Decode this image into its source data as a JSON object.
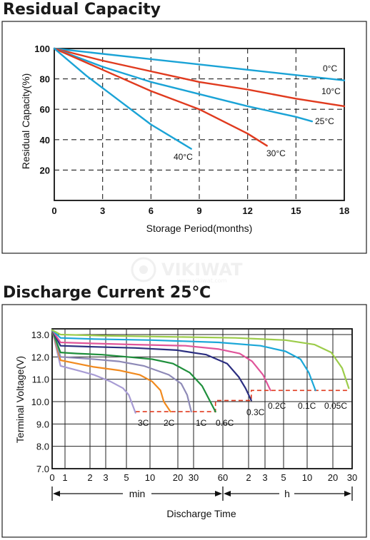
{
  "chart_data": [
    {
      "type": "line",
      "title": "Residual Capacity",
      "xlabel": "Storage Period(months)",
      "ylabel": "Residual Capacity(%)",
      "xlim": [
        0,
        18
      ],
      "ylim": [
        0,
        100
      ],
      "xticks": [
        0,
        3,
        6,
        9,
        12,
        15,
        18
      ],
      "yticks": [
        20,
        40,
        60,
        80,
        100
      ],
      "grid": true,
      "series": [
        {
          "name": "0°C",
          "color": "#1aa3d6",
          "x": [
            0,
            6,
            12,
            18
          ],
          "y": [
            100,
            93,
            86,
            79
          ]
        },
        {
          "name": "10°C",
          "color": "#e03a1e",
          "x": [
            0,
            3,
            6,
            9,
            12,
            15,
            18
          ],
          "y": [
            100,
            92,
            85,
            78,
            73,
            67,
            62
          ]
        },
        {
          "name": "25°C",
          "color": "#1aa3d6",
          "x": [
            0,
            3,
            6,
            9,
            12,
            15,
            16
          ],
          "y": [
            100,
            88,
            78,
            70,
            62,
            55,
            52
          ]
        },
        {
          "name": "30°C",
          "color": "#e03a1e",
          "x": [
            0,
            3,
            6,
            9,
            12,
            13.2
          ],
          "y": [
            100,
            86,
            72,
            60,
            44,
            36
          ]
        },
        {
          "name": "40°C",
          "color": "#1aa3d6",
          "x": [
            0,
            2,
            4,
            6,
            8.5
          ],
          "y": [
            100,
            82,
            66,
            50,
            34
          ]
        }
      ]
    },
    {
      "type": "line",
      "title": "Discharge Current 25℃",
      "xlabel": "Discharge Time",
      "ylabel": "Terminal Voltage(V)",
      "ylim": [
        7.0,
        13.0
      ],
      "yticks": [
        7.0,
        8.0,
        9.0,
        10.0,
        11.0,
        12.0,
        13.0
      ],
      "xtick_labels": [
        "0",
        "1",
        "2",
        "3",
        "5",
        "10",
        "20",
        "30",
        "60",
        "2",
        "3",
        "5",
        "10",
        "20",
        "30"
      ],
      "range_labels": {
        "min": "min",
        "h": "h"
      },
      "grid": true,
      "series": [
        {
          "name": "3C",
          "color": "#a79bd4",
          "x": [
            0,
            1,
            3,
            5,
            7,
            8.5,
            9.2,
            9.6,
            10
          ],
          "y": [
            13.2,
            11.6,
            11.4,
            11.2,
            10.9,
            10.6,
            10.3,
            9.9,
            9.5
          ]
        },
        {
          "name": "2C",
          "color": "#f18a1e",
          "x": [
            0,
            1,
            3,
            5,
            8,
            10.5,
            12,
            13,
            13.4,
            14.2
          ],
          "y": [
            13.2,
            11.85,
            11.7,
            11.55,
            11.4,
            11.2,
            10.9,
            10.5,
            10.0,
            9.55
          ]
        },
        {
          "name": "1C",
          "color": "#8e8ab7",
          "x": [
            0,
            1,
            3,
            5,
            8,
            11,
            14,
            15.5,
            16.2,
            16.7
          ],
          "y": [
            13.2,
            12.0,
            11.95,
            11.9,
            11.8,
            11.6,
            11.2,
            10.8,
            10.3,
            9.55
          ]
        },
        {
          "name": "0.6C",
          "color": "#1f8f3c",
          "x": [
            0,
            1,
            3,
            6,
            9,
            12,
            14.5,
            16.5,
            18,
            19.6
          ],
          "y": [
            13.2,
            12.2,
            12.15,
            12.1,
            12.0,
            11.9,
            11.7,
            11.3,
            10.7,
            9.55
          ]
        },
        {
          "name": "0.3C",
          "color": "#2b2e80",
          "x": [
            0,
            1,
            5,
            10,
            15,
            18.5,
            21,
            22.4,
            23.2,
            23.9
          ],
          "y": [
            13.2,
            12.5,
            12.45,
            12.4,
            12.3,
            12.1,
            11.7,
            11.1,
            10.6,
            10.05
          ]
        },
        {
          "name": "0.2C",
          "color": "#e0559a",
          "x": [
            0,
            1,
            5,
            10,
            16,
            20,
            22.5,
            24,
            25.3,
            26.2
          ],
          "y": [
            13.2,
            12.65,
            12.6,
            12.55,
            12.5,
            12.35,
            12.15,
            11.8,
            11.2,
            10.5
          ]
        },
        {
          "name": "0.1C",
          "color": "#1ba7d8",
          "x": [
            0,
            1,
            5,
            12,
            20,
            25,
            28,
            29.8,
            30.8,
            31.6
          ],
          "y": [
            13.2,
            12.85,
            12.8,
            12.75,
            12.65,
            12.5,
            12.25,
            11.9,
            11.3,
            10.5
          ]
        },
        {
          "name": "0.05C",
          "color": "#9ccc4a",
          "x": [
            0,
            1,
            6,
            14,
            22,
            28,
            31.5,
            33.5,
            34.8,
            35.6
          ],
          "y": [
            13.2,
            13.0,
            12.95,
            12.9,
            12.85,
            12.75,
            12.55,
            12.2,
            11.5,
            10.6
          ]
        }
      ],
      "cutoff": {
        "color": "#e03a1e",
        "x": [
          10,
          19.6,
          19.6,
          23.9,
          23.9,
          35.6
        ],
        "y": [
          9.55,
          9.55,
          10.05,
          10.05,
          10.5,
          10.5
        ]
      }
    }
  ],
  "watermark": {
    "line1": "VIKIWAT",
    "line2": "www.vikiwat.com"
  }
}
